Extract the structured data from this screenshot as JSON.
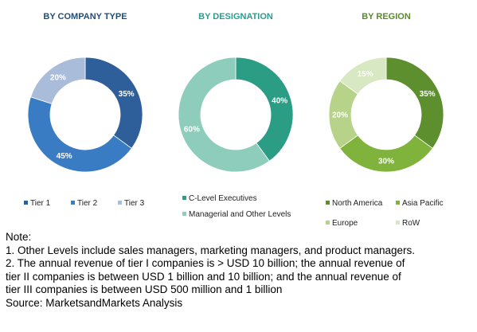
{
  "chart_data": [
    {
      "type": "pie",
      "title": "BY COMPANY TYPE",
      "title_color": "#1f4e79",
      "categories": [
        "Tier 1",
        "Tier 2",
        "Tier 3"
      ],
      "values": [
        35,
        45,
        20
      ],
      "value_labels": [
        "35%",
        "45%",
        "20%"
      ],
      "colors": [
        "#2e5f9a",
        "#3a7cc4",
        "#a9bcd9"
      ],
      "label_colors": [
        "#ffffff",
        "#ffffff",
        "#ffffff"
      ],
      "legend_placement": "bottom"
    },
    {
      "type": "pie",
      "title": "BY DESIGNATION",
      "title_color": "#2a9d8f",
      "categories": [
        "C-Level Executives",
        "Managerial and Other Levels"
      ],
      "values": [
        40,
        60
      ],
      "value_labels": [
        "40%",
        "60%"
      ],
      "colors": [
        "#2a9d84",
        "#8ecdbb"
      ],
      "label_colors": [
        "#ffffff",
        "#ffffff"
      ],
      "legend_placement": "bottom"
    },
    {
      "type": "pie",
      "title": "BY REGION",
      "title_color": "#5a8a2c",
      "categories": [
        "North America",
        "Asia Pacific",
        "Europe",
        "RoW"
      ],
      "values": [
        35,
        30,
        20,
        15
      ],
      "value_labels": [
        "35%",
        "30%",
        "20%",
        "15%"
      ],
      "colors": [
        "#5e8f2e",
        "#7fb33c",
        "#b7d38a",
        "#d8e8c2"
      ],
      "label_colors": [
        "#ffffff",
        "#ffffff",
        "#ffffff",
        "#ffffff"
      ],
      "legend_placement": "bottom"
    }
  ],
  "notes": {
    "heading": "Note:",
    "line1": "1. Other Levels include sales managers, marketing managers, and product managers.",
    "line2": "2. The annual revenue of tier I companies is > USD 10 billion; the annual revenue of",
    "line3": "tier II companies is between USD 1 billion and 10 billion; and the annual revenue of",
    "line4": "tier III companies is between USD 500 million and 1 billion",
    "source": "Source: MarketsandMarkets Analysis"
  }
}
